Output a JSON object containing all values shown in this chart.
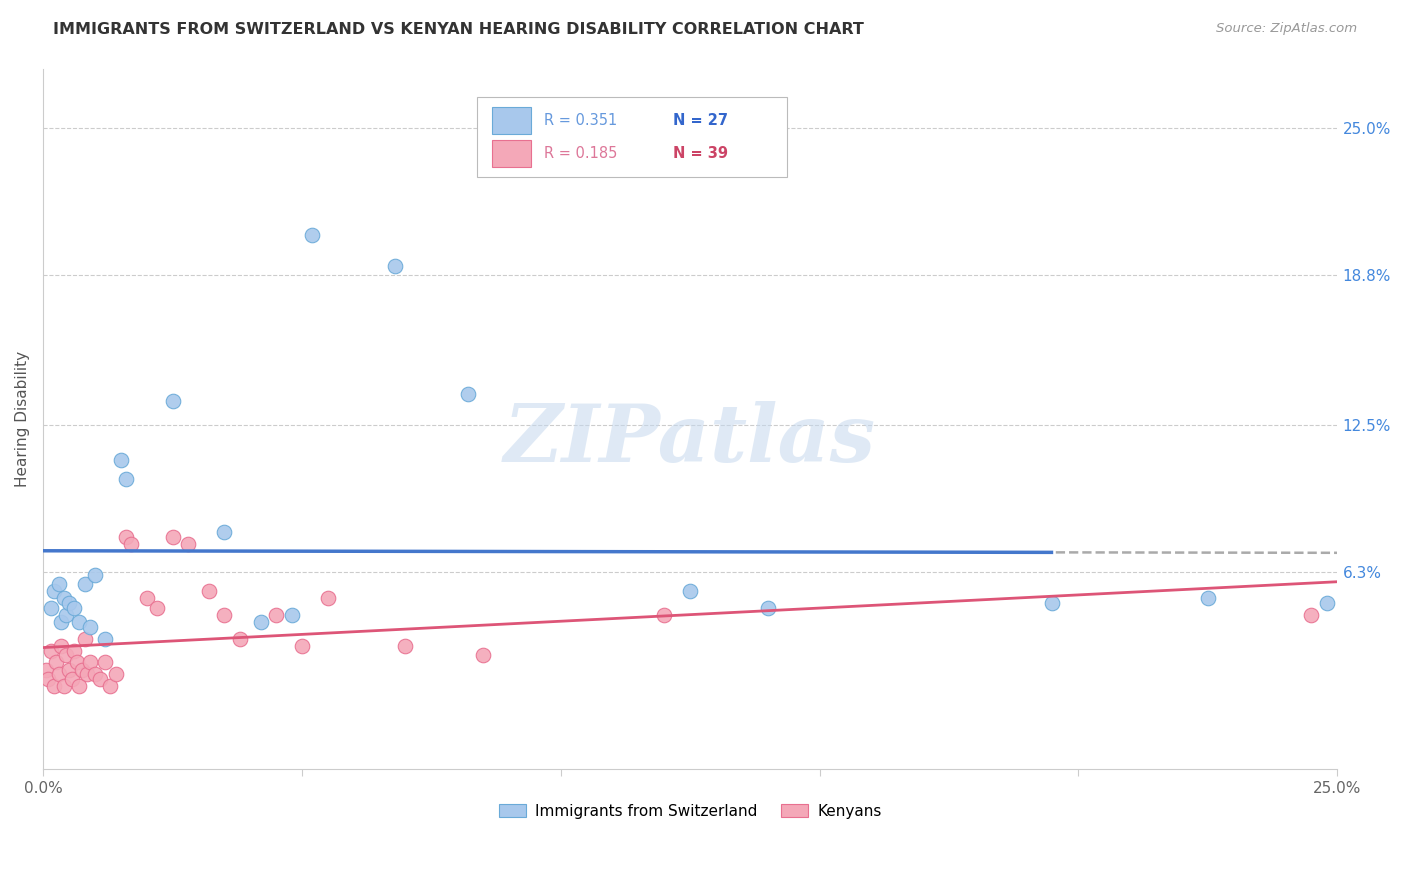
{
  "title": "IMMIGRANTS FROM SWITZERLAND VS KENYAN HEARING DISABILITY CORRELATION CHART",
  "source": "Source: ZipAtlas.com",
  "ylabel": "Hearing Disability",
  "ytick_labels": [
    "25.0%",
    "18.8%",
    "12.5%",
    "6.3%"
  ],
  "ytick_values": [
    25.0,
    18.8,
    12.5,
    6.3
  ],
  "xlim": [
    0.0,
    25.0
  ],
  "ylim": [
    -2.0,
    27.5
  ],
  "color_swiss": "#A8C8EC",
  "color_kenyan": "#F4A8B8",
  "color_swiss_edge": "#6AAAD8",
  "color_kenyan_edge": "#E87090",
  "color_swiss_line": "#4477CC",
  "color_kenyan_line": "#DD5577",
  "color_dash": "#AAAAAA",
  "watermark": "ZIPatlas",
  "swiss_points": [
    [
      0.15,
      4.8
    ],
    [
      0.2,
      5.5
    ],
    [
      0.3,
      5.8
    ],
    [
      0.35,
      4.2
    ],
    [
      0.4,
      5.2
    ],
    [
      0.45,
      4.5
    ],
    [
      0.5,
      5.0
    ],
    [
      0.6,
      4.8
    ],
    [
      0.7,
      4.2
    ],
    [
      0.8,
      5.8
    ],
    [
      0.9,
      4.0
    ],
    [
      1.0,
      6.2
    ],
    [
      1.2,
      3.5
    ],
    [
      1.5,
      11.0
    ],
    [
      1.6,
      10.2
    ],
    [
      2.5,
      13.5
    ],
    [
      3.5,
      8.0
    ],
    [
      4.2,
      4.2
    ],
    [
      4.8,
      4.5
    ],
    [
      5.2,
      20.5
    ],
    [
      6.8,
      19.2
    ],
    [
      8.2,
      13.8
    ],
    [
      12.5,
      5.5
    ],
    [
      14.0,
      4.8
    ],
    [
      19.5,
      5.0
    ],
    [
      22.5,
      5.2
    ],
    [
      24.8,
      5.0
    ]
  ],
  "kenyan_points": [
    [
      0.05,
      2.2
    ],
    [
      0.1,
      1.8
    ],
    [
      0.15,
      3.0
    ],
    [
      0.2,
      1.5
    ],
    [
      0.25,
      2.5
    ],
    [
      0.3,
      2.0
    ],
    [
      0.35,
      3.2
    ],
    [
      0.4,
      1.5
    ],
    [
      0.45,
      2.8
    ],
    [
      0.5,
      2.2
    ],
    [
      0.55,
      1.8
    ],
    [
      0.6,
      3.0
    ],
    [
      0.65,
      2.5
    ],
    [
      0.7,
      1.5
    ],
    [
      0.75,
      2.2
    ],
    [
      0.8,
      3.5
    ],
    [
      0.85,
      2.0
    ],
    [
      0.9,
      2.5
    ],
    [
      1.0,
      2.0
    ],
    [
      1.1,
      1.8
    ],
    [
      1.2,
      2.5
    ],
    [
      1.3,
      1.5
    ],
    [
      1.4,
      2.0
    ],
    [
      1.6,
      7.8
    ],
    [
      1.7,
      7.5
    ],
    [
      2.0,
      5.2
    ],
    [
      2.2,
      4.8
    ],
    [
      2.5,
      7.8
    ],
    [
      2.8,
      7.5
    ],
    [
      3.2,
      5.5
    ],
    [
      3.5,
      4.5
    ],
    [
      3.8,
      3.5
    ],
    [
      4.5,
      4.5
    ],
    [
      5.0,
      3.2
    ],
    [
      5.5,
      5.2
    ],
    [
      7.0,
      3.2
    ],
    [
      8.5,
      2.8
    ],
    [
      12.0,
      4.5
    ],
    [
      24.5,
      4.5
    ]
  ]
}
